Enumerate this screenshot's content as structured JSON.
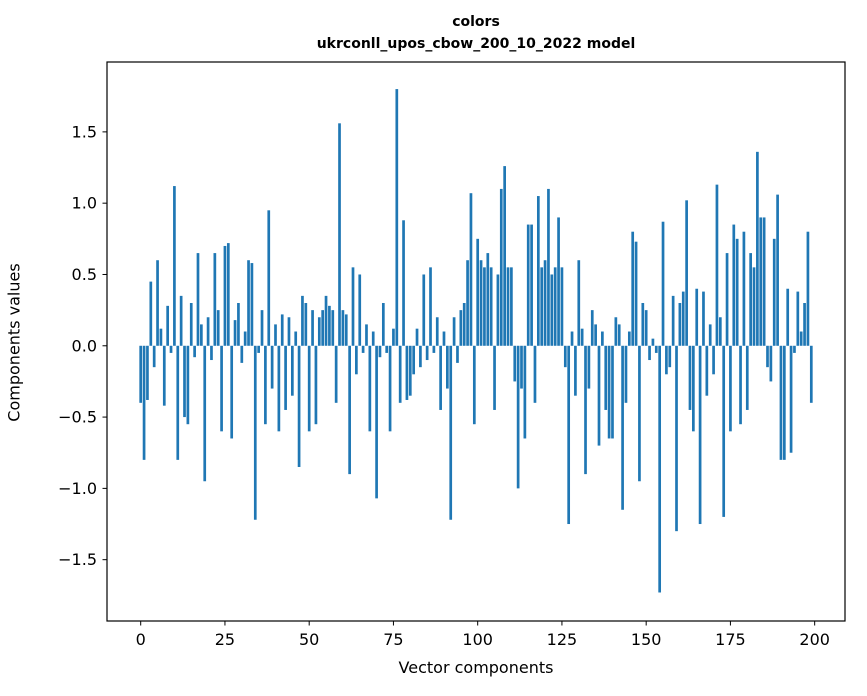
{
  "chart_data": {
    "type": "bar",
    "title_line1": "colors",
    "title_line2": "ukrconll_upos_cbow_200_10_2022 model",
    "xlabel": "Vector components",
    "ylabel": "Components values",
    "bar_color": "#1f77b4",
    "xlim": [
      -10,
      209
    ],
    "ylim": [
      -1.93,
      1.99
    ],
    "xticks": [
      0,
      25,
      50,
      75,
      100,
      125,
      150,
      175,
      200
    ],
    "yticks": [
      -1.5,
      -1.0,
      -0.5,
      0.0,
      0.5,
      1.0,
      1.5
    ],
    "grid": false,
    "legend": "none",
    "x_is_index": true,
    "values": [
      -0.4,
      -0.8,
      -0.38,
      0.45,
      -0.15,
      0.6,
      0.12,
      -0.42,
      0.28,
      -0.05,
      1.12,
      -0.8,
      0.35,
      -0.5,
      -0.55,
      0.3,
      -0.08,
      0.65,
      0.15,
      -0.95,
      0.2,
      -0.1,
      0.65,
      0.25,
      -0.6,
      0.7,
      0.72,
      -0.65,
      0.18,
      0.3,
      -0.12,
      0.1,
      0.6,
      0.58,
      -1.22,
      -0.05,
      0.25,
      -0.55,
      0.95,
      -0.3,
      0.15,
      -0.6,
      0.22,
      -0.45,
      0.2,
      -0.35,
      0.1,
      -0.85,
      0.35,
      0.3,
      -0.6,
      0.25,
      -0.55,
      0.2,
      0.25,
      0.35,
      0.28,
      0.25,
      -0.4,
      1.56,
      0.25,
      0.22,
      -0.9,
      0.55,
      -0.2,
      0.5,
      -0.05,
      0.15,
      -0.6,
      0.1,
      -1.07,
      -0.08,
      0.3,
      -0.05,
      -0.6,
      0.12,
      1.8,
      -0.4,
      0.88,
      -0.38,
      -0.35,
      -0.2,
      0.12,
      -0.15,
      0.5,
      -0.1,
      0.55,
      -0.05,
      0.2,
      -0.45,
      0.1,
      -0.3,
      -1.22,
      0.2,
      -0.12,
      0.25,
      0.3,
      0.6,
      1.07,
      -0.55,
      0.75,
      0.6,
      0.55,
      0.65,
      0.55,
      -0.45,
      0.5,
      1.1,
      1.26,
      0.55,
      0.55,
      -0.25,
      -1.0,
      -0.3,
      -0.65,
      0.85,
      0.85,
      -0.4,
      1.05,
      0.55,
      0.6,
      1.1,
      0.5,
      0.55,
      0.9,
      0.55,
      -0.15,
      -1.25,
      0.1,
      -0.35,
      0.6,
      0.12,
      -0.9,
      -0.3,
      0.25,
      0.15,
      -0.7,
      0.1,
      -0.45,
      -0.65,
      -0.65,
      0.2,
      0.15,
      -1.15,
      -0.4,
      0.1,
      0.8,
      0.73,
      -0.95,
      0.3,
      0.25,
      -0.1,
      0.05,
      -0.05,
      -1.73,
      0.87,
      -0.2,
      -0.15,
      0.35,
      -1.3,
      0.3,
      0.38,
      1.02,
      -0.45,
      -0.6,
      0.4,
      -1.25,
      0.38,
      -0.35,
      0.15,
      -0.2,
      1.13,
      0.2,
      -1.2,
      0.65,
      -0.6,
      0.85,
      0.75,
      -0.55,
      0.8,
      -0.45,
      0.65,
      0.55,
      1.36,
      0.9,
      0.9,
      -0.15,
      -0.25,
      0.75,
      1.06,
      -0.8,
      -0.8,
      0.4,
      -0.75,
      -0.05,
      0.38,
      0.1,
      0.3,
      0.8,
      -0.4
    ]
  }
}
